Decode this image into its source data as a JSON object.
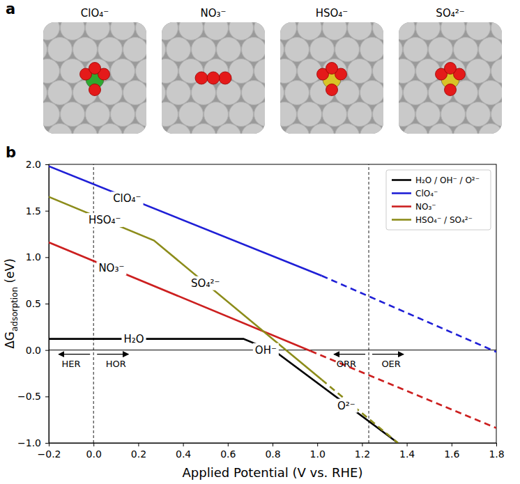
{
  "panel_labels": [
    "a",
    "b"
  ],
  "structures": [
    {
      "label": "ClO₄⁻",
      "color": "#2fa82f"
    },
    {
      "label": "NO₃⁻",
      "color": "#3050f8"
    },
    {
      "label": "HSO₄⁻",
      "color": "#d8c427"
    },
    {
      "label": "SO₄²⁻",
      "color": "#d8c427"
    }
  ],
  "chart_data": {
    "type": "line",
    "xlabel": "Applied Potential (V vs. RHE)",
    "ylabel": [
      "ΔG",
      "adsorption",
      " (eV)"
    ],
    "xlim": [
      -0.2,
      1.8
    ],
    "xticks": [
      {
        "value": -0.2,
        "label": "−0.2"
      },
      {
        "value": 0,
        "label": "0.0"
      },
      0.2,
      0.4,
      0.6,
      0.8,
      {
        "value": 1,
        "label": "1.0"
      },
      1.2,
      1.4,
      1.6,
      1.8
    ],
    "ylim": [
      -1,
      2
    ],
    "yticks": [
      {
        "value": -1,
        "label": "−1.0"
      },
      {
        "value": -0.5,
        "label": "−0.5"
      },
      {
        "value": 0,
        "label": "0.0"
      },
      0.5,
      {
        "value": 1,
        "label": "1.0"
      },
      1.5,
      {
        "value": 2,
        "label": "2.0"
      }
    ],
    "legend": "upper right",
    "hlines": [
      0
    ],
    "vlines": [
      0,
      1.23
    ],
    "series": [
      {
        "name": "H₂O / OH⁻ / O²⁻",
        "color": "#000000",
        "segments": [
          {
            "line_style": "solid",
            "x": [
              -0.2,
              0.67,
              0.82,
              1.36
            ],
            "values": [
              0.12,
              0.12,
              -0.03,
              -1.0
            ]
          }
        ]
      },
      {
        "name": "ClO₄⁻",
        "color": "#1f1fd6",
        "segments": [
          {
            "line_style": "solid",
            "x": [
              -0.2,
              1.02
            ],
            "values": [
              1.98,
              0.8
            ]
          },
          {
            "line_style": "dashed",
            "x": [
              1.02,
              1.8
            ],
            "values": [
              0.8,
              -0.02
            ]
          }
        ]
      },
      {
        "name": "NO₃⁻",
        "color": "#cc1f1f",
        "segments": [
          {
            "line_style": "solid",
            "x": [
              -0.2,
              0.97
            ],
            "values": [
              1.16,
              -0.01
            ]
          },
          {
            "line_style": "dashed",
            "x": [
              0.97,
              1.8
            ],
            "values": [
              -0.01,
              -0.84
            ]
          }
        ]
      },
      {
        "name": "HSO₄⁻ / SO₄²⁻",
        "color": "#8c8c1a",
        "segments": [
          {
            "line_style": "solid",
            "x": [
              -0.2,
              0.27,
              1.02
            ],
            "values": [
              1.65,
              1.18,
              -0.32
            ]
          },
          {
            "line_style": "dashed",
            "x": [
              1.02,
              1.36
            ],
            "values": [
              -0.32,
              -1.0
            ]
          }
        ]
      }
    ],
    "annotations": [
      {
        "text": "ClO₄⁻",
        "x": 0.15,
        "y": 1.63
      },
      {
        "text": "HSO₄⁻",
        "x": 0.05,
        "y": 1.4
      },
      {
        "text": "NO₃⁻",
        "x": 0.08,
        "y": 0.88
      },
      {
        "text": "SO₄²⁻",
        "x": 0.5,
        "y": 0.72
      },
      {
        "text": "H₂O",
        "x": 0.18,
        "y": 0.12
      },
      {
        "text": "OH⁻",
        "x": 0.77,
        "y": 0.0
      },
      {
        "text": "O²⁻",
        "x": 1.13,
        "y": -0.6
      }
    ],
    "regions": [
      {
        "text": "HER",
        "x": -0.1,
        "y": -0.15
      },
      {
        "text": "HOR",
        "x": 0.1,
        "y": -0.15
      },
      {
        "text": "ORR",
        "x": 1.13,
        "y": -0.15
      },
      {
        "text": "OER",
        "x": 1.33,
        "y": -0.15
      }
    ]
  }
}
